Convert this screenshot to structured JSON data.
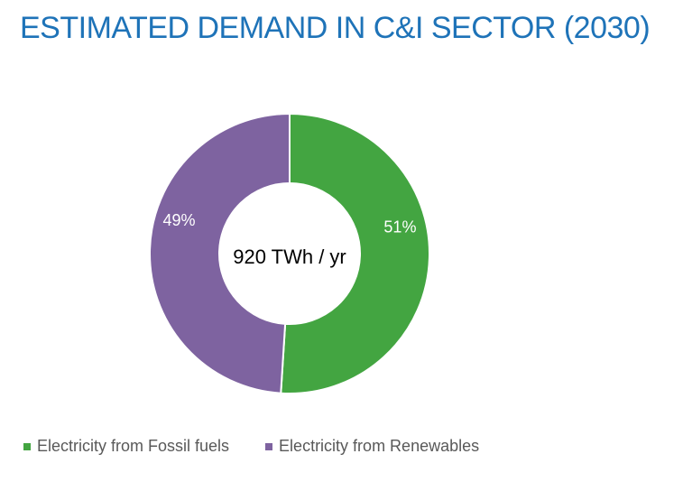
{
  "title": "ESTIMATED DEMAND IN C&I SECTOR (2030)",
  "chart_data": {
    "type": "pie",
    "variant": "donut",
    "center_label": "920 TWh / yr",
    "slices": [
      {
        "name": "Electricity from Fossil fuels",
        "value": 51,
        "label": "51%",
        "color": "#43A541"
      },
      {
        "name": "Electricity from Renewables",
        "value": 49,
        "label": "49%",
        "color": "#7E63A0"
      }
    ],
    "legend_position": "bottom-left"
  }
}
